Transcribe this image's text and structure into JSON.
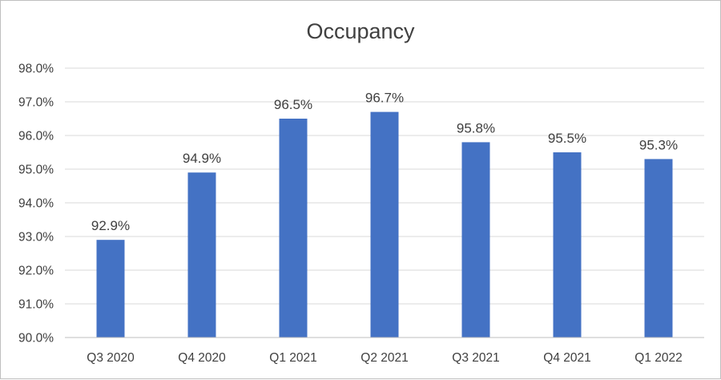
{
  "chart_data": {
    "type": "bar",
    "title": "Occupancy",
    "xlabel": "",
    "ylabel": "",
    "categories": [
      "Q3 2020",
      "Q4 2020",
      "Q1 2021",
      "Q2 2021",
      "Q3 2021",
      "Q4 2021",
      "Q1 2022"
    ],
    "values": [
      92.9,
      94.9,
      96.5,
      96.7,
      95.8,
      95.5,
      95.3
    ],
    "data_labels": [
      "92.9%",
      "94.9%",
      "96.5%",
      "96.7%",
      "95.8%",
      "95.5%",
      "95.3%"
    ],
    "ylim": [
      90.0,
      98.0
    ],
    "yticks": [
      90.0,
      91.0,
      92.0,
      93.0,
      94.0,
      95.0,
      96.0,
      97.0,
      98.0
    ],
    "ytick_labels": [
      "90.0%",
      "91.0%",
      "92.0%",
      "93.0%",
      "94.0%",
      "95.0%",
      "96.0%",
      "97.0%",
      "98.0%"
    ],
    "grid": true,
    "legend": "none",
    "bar_color": "#4472c4"
  }
}
